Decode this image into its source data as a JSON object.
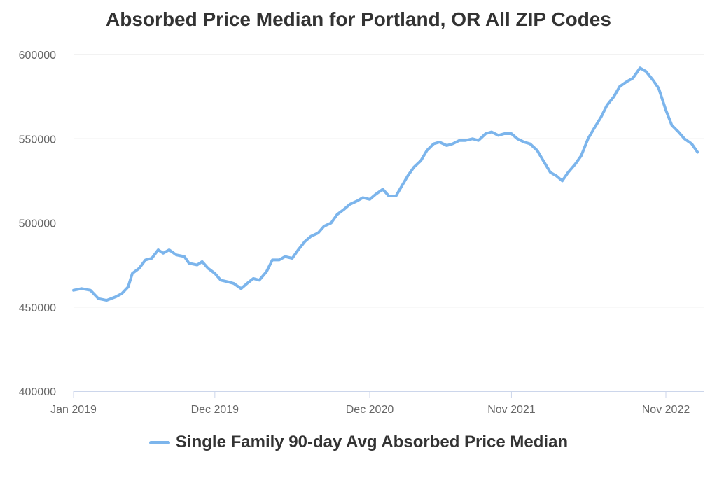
{
  "chart_data": {
    "type": "line",
    "title": "Absorbed Price Median for Portland, OR All ZIP Codes",
    "xlabel": "",
    "ylabel": "",
    "ylim": [
      400000,
      600000
    ],
    "yticks": [
      400000,
      450000,
      500000,
      550000,
      600000
    ],
    "ytick_labels": [
      "400000",
      "450000",
      "500000",
      "550000",
      "600000"
    ],
    "xticks": [
      "2019-01-01",
      "2019-12-01",
      "2020-12-01",
      "2021-11-01",
      "2022-11-01"
    ],
    "xtick_labels": [
      "Jan 2019",
      "Dec 2019",
      "Dec 2020",
      "Nov 2021",
      "Nov 2022"
    ],
    "xlim": [
      "2019-01-01",
      "2023-01-31"
    ],
    "grid": true,
    "legend_position": "bottom",
    "colors": {
      "line": "#7cb5ec",
      "grid": "#e6e6e6",
      "axis": "#ccd6eb"
    },
    "series": [
      {
        "name": "Single Family 90-day Avg Absorbed Price Median",
        "points": [
          [
            "2019-01-01",
            460000
          ],
          [
            "2019-01-20",
            461000
          ],
          [
            "2019-02-10",
            460000
          ],
          [
            "2019-03-01",
            455000
          ],
          [
            "2019-03-20",
            454000
          ],
          [
            "2019-04-10",
            456000
          ],
          [
            "2019-04-25",
            458000
          ],
          [
            "2019-05-10",
            462000
          ],
          [
            "2019-05-20",
            470000
          ],
          [
            "2019-06-05",
            473000
          ],
          [
            "2019-06-20",
            478000
          ],
          [
            "2019-07-05",
            479000
          ],
          [
            "2019-07-20",
            484000
          ],
          [
            "2019-08-01",
            482000
          ],
          [
            "2019-08-15",
            484000
          ],
          [
            "2019-09-01",
            481000
          ],
          [
            "2019-09-20",
            480000
          ],
          [
            "2019-10-01",
            476000
          ],
          [
            "2019-10-20",
            475000
          ],
          [
            "2019-11-01",
            477000
          ],
          [
            "2019-11-15",
            473000
          ],
          [
            "2019-12-01",
            470000
          ],
          [
            "2019-12-15",
            466000
          ],
          [
            "2020-01-01",
            465000
          ],
          [
            "2020-01-15",
            464000
          ],
          [
            "2020-02-01",
            461000
          ],
          [
            "2020-02-15",
            464000
          ],
          [
            "2020-03-01",
            467000
          ],
          [
            "2020-03-15",
            466000
          ],
          [
            "2020-04-01",
            471000
          ],
          [
            "2020-04-15",
            478000
          ],
          [
            "2020-05-01",
            478000
          ],
          [
            "2020-05-15",
            480000
          ],
          [
            "2020-06-01",
            479000
          ],
          [
            "2020-06-15",
            484000
          ],
          [
            "2020-07-01",
            489000
          ],
          [
            "2020-07-15",
            492000
          ],
          [
            "2020-08-01",
            494000
          ],
          [
            "2020-08-15",
            498000
          ],
          [
            "2020-09-01",
            500000
          ],
          [
            "2020-09-15",
            505000
          ],
          [
            "2020-10-01",
            508000
          ],
          [
            "2020-10-15",
            511000
          ],
          [
            "2020-11-01",
            513000
          ],
          [
            "2020-11-15",
            515000
          ],
          [
            "2020-12-01",
            514000
          ],
          [
            "2020-12-15",
            517000
          ],
          [
            "2021-01-01",
            520000
          ],
          [
            "2021-01-15",
            516000
          ],
          [
            "2021-02-01",
            516000
          ],
          [
            "2021-02-15",
            522000
          ],
          [
            "2021-03-01",
            528000
          ],
          [
            "2021-03-15",
            533000
          ],
          [
            "2021-04-01",
            537000
          ],
          [
            "2021-04-15",
            543000
          ],
          [
            "2021-05-01",
            547000
          ],
          [
            "2021-05-15",
            548000
          ],
          [
            "2021-06-01",
            546000
          ],
          [
            "2021-06-15",
            547000
          ],
          [
            "2021-07-01",
            549000
          ],
          [
            "2021-07-15",
            549000
          ],
          [
            "2021-08-01",
            550000
          ],
          [
            "2021-08-15",
            549000
          ],
          [
            "2021-09-01",
            553000
          ],
          [
            "2021-09-15",
            554000
          ],
          [
            "2021-10-01",
            552000
          ],
          [
            "2021-10-15",
            553000
          ],
          [
            "2021-11-01",
            553000
          ],
          [
            "2021-11-15",
            550000
          ],
          [
            "2021-12-01",
            548000
          ],
          [
            "2021-12-15",
            547000
          ],
          [
            "2022-01-01",
            543000
          ],
          [
            "2022-01-15",
            537000
          ],
          [
            "2022-02-01",
            530000
          ],
          [
            "2022-02-15",
            528000
          ],
          [
            "2022-03-01",
            525000
          ],
          [
            "2022-03-15",
            530000
          ],
          [
            "2022-04-01",
            535000
          ],
          [
            "2022-04-15",
            540000
          ],
          [
            "2022-05-01",
            550000
          ],
          [
            "2022-05-15",
            556000
          ],
          [
            "2022-06-01",
            563000
          ],
          [
            "2022-06-15",
            570000
          ],
          [
            "2022-07-01",
            575000
          ],
          [
            "2022-07-15",
            581000
          ],
          [
            "2022-08-01",
            584000
          ],
          [
            "2022-08-15",
            586000
          ],
          [
            "2022-09-01",
            592000
          ],
          [
            "2022-09-15",
            590000
          ],
          [
            "2022-10-01",
            585000
          ],
          [
            "2022-10-15",
            580000
          ],
          [
            "2022-11-01",
            567000
          ],
          [
            "2022-11-15",
            558000
          ],
          [
            "2022-12-01",
            554000
          ],
          [
            "2022-12-15",
            550000
          ],
          [
            "2023-01-01",
            547000
          ],
          [
            "2023-01-15",
            542000
          ]
        ]
      }
    ]
  }
}
